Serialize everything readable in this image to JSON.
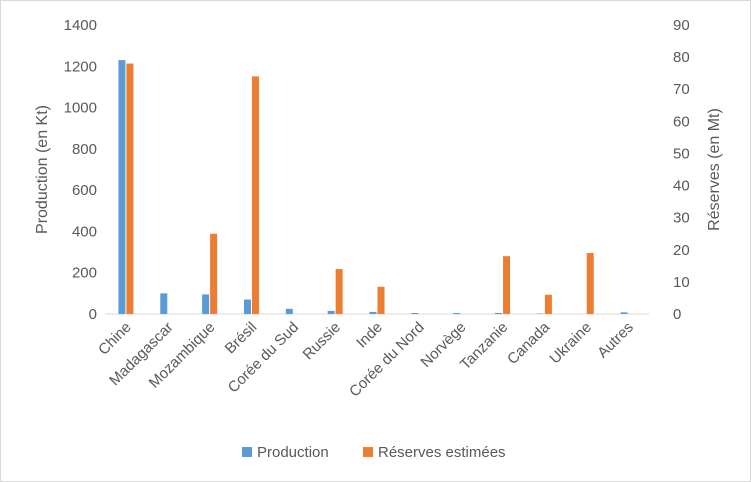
{
  "chart_data": {
    "type": "bar",
    "title": "",
    "categories": [
      "Chine",
      "Madagascar",
      "Mozambique",
      "Brésil",
      "Corée du Sud",
      "Russie",
      "Inde",
      "Corée du Nord",
      "Norvège",
      "Tanzanie",
      "Canada",
      "Ukraine",
      "Autres"
    ],
    "series": [
      {
        "name": "Production",
        "axis": "left",
        "color": "#5b9bd5",
        "values": [
          1230,
          100,
          95,
          70,
          25,
          15,
          10,
          5,
          5,
          5,
          2,
          0,
          8
        ]
      },
      {
        "name": "Réserves estimées",
        "axis": "right",
        "color": "#ed7d31",
        "values": [
          78,
          0,
          25,
          74,
          0,
          14,
          8.5,
          0,
          0,
          18,
          6,
          19,
          0
        ]
      }
    ],
    "y_left": {
      "label": "Production (en Kt)",
      "min": 0,
      "max": 1400,
      "ticks": [
        0,
        200,
        400,
        600,
        800,
        1000,
        1200,
        1400
      ]
    },
    "y_right": {
      "label": "Réserves (en Mt)",
      "min": 0,
      "max": 90,
      "ticks": [
        0,
        10,
        20,
        30,
        40,
        50,
        60,
        70,
        80,
        90
      ]
    },
    "grid": false,
    "legend_position": "bottom"
  }
}
